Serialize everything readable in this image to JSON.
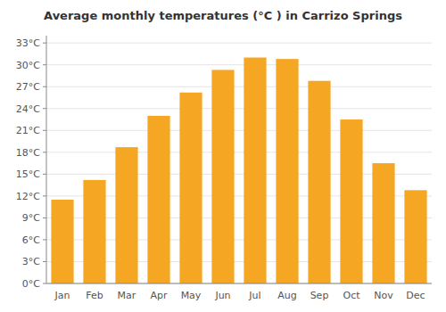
{
  "chart_data": {
    "type": "bar",
    "title": "Average monthly temperatures (°C ) in Carrizo Springs",
    "categories": [
      "Jan",
      "Feb",
      "Mar",
      "Apr",
      "May",
      "Jun",
      "Jul",
      "Aug",
      "Sep",
      "Oct",
      "Nov",
      "Dec"
    ],
    "values": [
      11.5,
      14.2,
      18.7,
      23.0,
      26.2,
      29.3,
      31.0,
      30.8,
      27.8,
      22.5,
      16.5,
      12.8
    ],
    "color": "#F5A623",
    "ylim": [
      0,
      34
    ],
    "yticks": [
      {
        "value": 0,
        "label": "0°C"
      },
      {
        "value": 3,
        "label": "3°C"
      },
      {
        "value": 6,
        "label": "6°C"
      },
      {
        "value": 9,
        "label": "9°C"
      },
      {
        "value": 12,
        "label": "12°C"
      },
      {
        "value": 15,
        "label": "15°C"
      },
      {
        "value": 18,
        "label": "18°C"
      },
      {
        "value": 21,
        "label": "21°C"
      },
      {
        "value": 24,
        "label": "24°C"
      },
      {
        "value": 27,
        "label": "27°C"
      },
      {
        "value": 30,
        "label": "30°C"
      },
      {
        "value": 33,
        "label": "33°C"
      }
    ],
    "grid": true
  }
}
